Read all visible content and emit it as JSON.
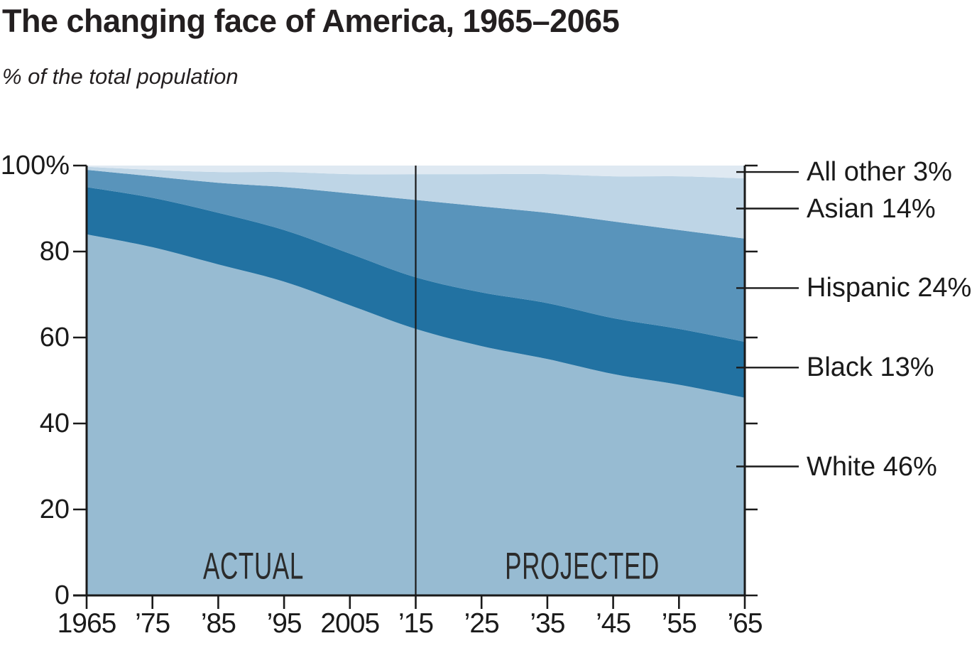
{
  "header": {
    "title": "The changing face of America, 1965–2065",
    "subtitle": "% of the total population"
  },
  "chart_data": {
    "type": "area",
    "stacked": true,
    "title": "The changing face of America, 1965–2065",
    "ylabel": "% of the total population",
    "xlim": [
      1965,
      2065
    ],
    "ylim": [
      0,
      100
    ],
    "grid": false,
    "legend_position": "right-edge-labels",
    "axis_color": "#1a1a1a",
    "x": [
      1965,
      1975,
      1985,
      1995,
      2005,
      2015,
      2025,
      2035,
      2045,
      2055,
      2065
    ],
    "x_tick_labels": [
      "1965",
      "’75",
      "’85",
      "’95",
      "2005",
      "’15",
      "’25",
      "’35",
      "’45",
      "’55",
      "’65"
    ],
    "y_ticks": [
      {
        "value": 100,
        "label": "100%"
      },
      {
        "value": 80,
        "label": "80"
      },
      {
        "value": 60,
        "label": "60"
      },
      {
        "value": 40,
        "label": "40"
      },
      {
        "value": 20,
        "label": "20"
      },
      {
        "value": 0,
        "label": "0"
      }
    ],
    "divider_year": 2015,
    "annotations": {
      "actual": "ACTUAL",
      "projected": "PROJECTED"
    },
    "series": [
      {
        "name": "White",
        "end_label": "White 46%",
        "color": "#97bbd2",
        "values": [
          84,
          81,
          77,
          73,
          67.5,
          62,
          58,
          55,
          51.5,
          49,
          46
        ]
      },
      {
        "name": "Black",
        "end_label": "Black 13%",
        "color": "#2272a2",
        "values": [
          11,
          11.5,
          12,
          12,
          12,
          12,
          12.5,
          13,
          13,
          13,
          13
        ]
      },
      {
        "name": "Hispanic",
        "end_label": "Hispanic 24%",
        "color": "#5994bb",
        "values": [
          4,
          5,
          7,
          10,
          14,
          18,
          20,
          21,
          22.5,
          23,
          24
        ]
      },
      {
        "name": "Asian",
        "end_label": "Asian 14%",
        "color": "#bed5e6",
        "values": [
          0.7,
          1.5,
          2.5,
          3.5,
          4.5,
          6,
          7.5,
          9,
          10.5,
          12.5,
          14
        ]
      },
      {
        "name": "All other",
        "end_label": "All other 3%",
        "color": "#dfe9f2",
        "values": [
          0.3,
          1,
          1.5,
          1.5,
          2,
          2,
          2,
          2,
          2.5,
          2.5,
          3
        ]
      }
    ]
  }
}
